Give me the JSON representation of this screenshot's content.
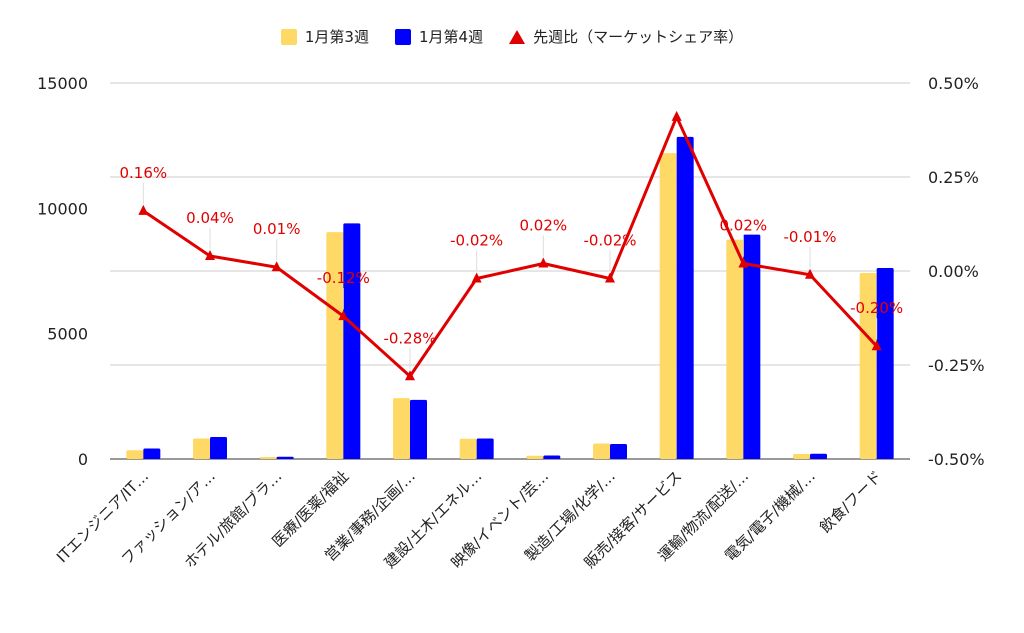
{
  "chart_data": {
    "type": "bar",
    "categories": [
      "ITエンジニア/IT…",
      "ファッション/ア…",
      "ホテル/旅館/ブラ…",
      "医療/医薬/福祉",
      "営業/事務/企画/…",
      "建設/土木/エネル…",
      "映像/イベント/芸…",
      "製造/工場/化学/…",
      "販売/接客/サービス",
      "運輸/物流/配送/…",
      "電気/電子/機械/…",
      "飲食/フード"
    ],
    "series": [
      {
        "name": "1月第3週",
        "type": "bar",
        "axis": "left",
        "color": "#FFD966",
        "values": [
          350,
          820,
          80,
          9050,
          2430,
          810,
          130,
          620,
          12200,
          8750,
          200,
          7420
        ]
      },
      {
        "name": "1月第4週",
        "type": "bar",
        "axis": "left",
        "color": "#0000FF",
        "values": [
          420,
          880,
          90,
          9400,
          2360,
          820,
          140,
          600,
          12850,
          8950,
          210,
          7620
        ]
      },
      {
        "name": "先週比（マーケットシェア率）",
        "type": "line",
        "axis": "right",
        "color": "#E00000",
        "values": [
          0.16,
          0.04,
          0.01,
          -0.12,
          -0.28,
          -0.02,
          0.02,
          -0.02,
          0.41,
          0.02,
          -0.01,
          -0.2
        ],
        "labels": [
          "0.16%",
          "0.04%",
          "0.01%",
          "-0.12%",
          "-0.28%",
          "-0.02%",
          "0.02%",
          "-0.02%",
          "",
          "0.02%",
          "-0.01%",
          "-0.20%"
        ]
      }
    ],
    "y_left": {
      "min": 0,
      "max": 15000,
      "ticks": [
        "0",
        "5000",
        "10000",
        "15000"
      ]
    },
    "y_right": {
      "min": -0.5,
      "max": 0.5,
      "ticks": [
        "-0.50%",
        "-0.25%",
        "0.00%",
        "0.25%",
        "0.50%"
      ]
    },
    "grid": true,
    "legend": "top"
  }
}
